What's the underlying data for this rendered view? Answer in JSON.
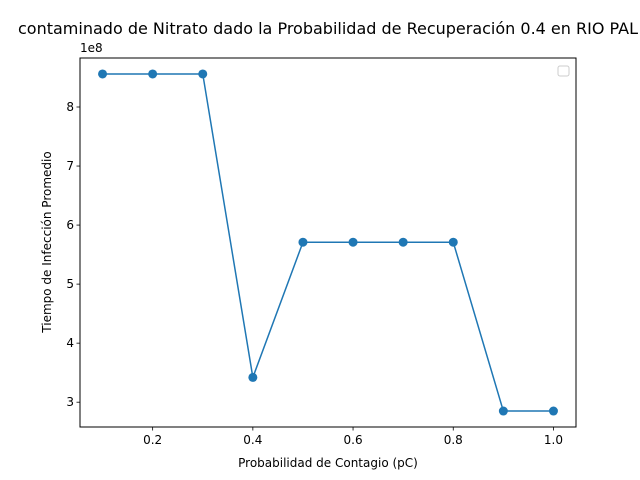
{
  "chart_data": {
    "type": "line",
    "title": "contaminado de Nitrato dado la Probabilidad de Recuperación 0.4 en RIO PAL",
    "xlabel": "Probabilidad de Contagio (pC)",
    "ylabel": "Tiempo de Infección Promedio",
    "y_offset_label": "1e8",
    "x": [
      0.1,
      0.2,
      0.3,
      0.4,
      0.5,
      0.6,
      0.7,
      0.8,
      0.9,
      1.0
    ],
    "series": [
      {
        "values": [
          856000000,
          856000000,
          856000000,
          342000000,
          571000000,
          571000000,
          571000000,
          571000000,
          285000000,
          285000000
        ],
        "color": "#1f77b4",
        "marker": "circle"
      }
    ],
    "xlim": [
      0.055,
      1.045
    ],
    "ylim": [
      258000000,
      883000000
    ],
    "x_ticks": [
      0.2,
      0.4,
      0.6,
      0.8,
      1.0
    ],
    "x_tick_labels": [
      "0.2",
      "0.4",
      "0.6",
      "0.8",
      "1.0"
    ],
    "y_ticks": [
      300000000,
      400000000,
      500000000,
      600000000,
      700000000,
      800000000
    ],
    "y_tick_labels": [
      "3",
      "4",
      "5",
      "6",
      "7",
      "8"
    ],
    "grid": false,
    "legend": {
      "placement": "top-right",
      "entries": []
    }
  }
}
